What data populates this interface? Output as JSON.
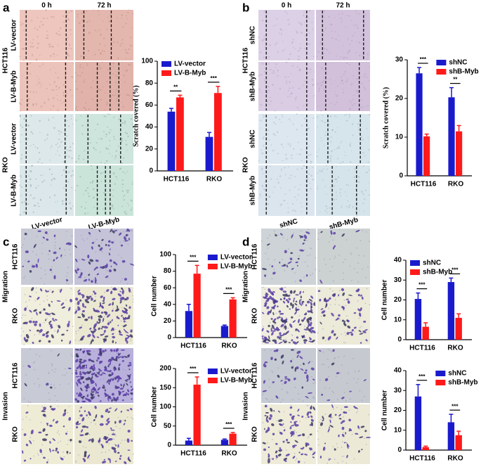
{
  "chart_data": [
    {
      "type": "bar",
      "ylabel": "Scratch covered (%)",
      "categories": [
        "HCT116",
        "RKO"
      ],
      "series": [
        {
          "name": "LV-vector",
          "color": "#1a1acd",
          "values": [
            54,
            31
          ],
          "errors": [
            3,
            4
          ]
        },
        {
          "name": "LV-B-Myb",
          "color": "#ff1a1a",
          "values": [
            67,
            71
          ],
          "errors": [
            2,
            6
          ]
        }
      ],
      "ylim": [
        0,
        100
      ],
      "yticks": [
        0,
        20,
        40,
        60,
        80,
        100
      ],
      "legend": "upper left",
      "annotations": [
        "**",
        "***"
      ]
    },
    {
      "type": "bar",
      "ylabel": "Scratch covered (%)",
      "categories": [
        "HCT116",
        "RKO"
      ],
      "series": [
        {
          "name": "shNC",
          "color": "#1a1acd",
          "values": [
            26.5,
            20.3
          ],
          "errors": [
            1.5,
            2.5
          ]
        },
        {
          "name": "shB-Myb",
          "color": "#ff1a1a",
          "values": [
            10.2,
            11.5
          ],
          "errors": [
            0.6,
            1.5
          ]
        }
      ],
      "ylim": [
        0,
        30
      ],
      "yticks": [
        0,
        10,
        20,
        30
      ],
      "legend": "upper right",
      "annotations": [
        "***",
        "**"
      ]
    },
    {
      "type": "bar",
      "ylabel": "Cell number",
      "categories": [
        "HCT116",
        "RKO"
      ],
      "series": [
        {
          "name": "LV-vector",
          "color": "#1a1acd",
          "values": [
            32,
            14
          ],
          "errors": [
            8,
            1
          ]
        },
        {
          "name": "LV-B-Myb",
          "color": "#ff1a1a",
          "values": [
            77,
            46
          ],
          "errors": [
            10,
            2
          ]
        }
      ],
      "ylim": [
        0,
        100
      ],
      "yticks": [
        0,
        20,
        40,
        60,
        80,
        100
      ],
      "legend": "upper right",
      "annotations": [
        "***",
        "***"
      ]
    },
    {
      "type": "bar",
      "ylabel": "Cell number",
      "categories": [
        "HCT116",
        "RKO"
      ],
      "series": [
        {
          "name": "LV-vector",
          "color": "#1a1acd",
          "values": [
            12,
            14
          ],
          "errors": [
            6,
            2
          ]
        },
        {
          "name": "LV-B-Myb",
          "color": "#ff1a1a",
          "values": [
            158,
            30
          ],
          "errors": [
            20,
            3
          ]
        }
      ],
      "ylim": [
        0,
        200
      ],
      "yticks": [
        0,
        50,
        100,
        150,
        200
      ],
      "legend": "upper right",
      "annotations": [
        "***",
        "***"
      ]
    },
    {
      "type": "bar",
      "ylabel": "Cell number",
      "categories": [
        "HCT116",
        "RKO"
      ],
      "series": [
        {
          "name": "shNC",
          "color": "#1a1acd",
          "values": [
            20.5,
            29
          ],
          "errors": [
            3,
            2
          ]
        },
        {
          "name": "shB-Myb",
          "color": "#ff1a1a",
          "values": [
            6.5,
            11
          ],
          "errors": [
            2,
            2
          ]
        }
      ],
      "ylim": [
        0,
        40
      ],
      "yticks": [
        0,
        10,
        20,
        30,
        40
      ],
      "legend": "upper left",
      "annotations": [
        "***",
        "***"
      ]
    },
    {
      "type": "bar",
      "ylabel": "Cell number",
      "categories": [
        "HCT116",
        "RKO"
      ],
      "series": [
        {
          "name": "shNC",
          "color": "#1a1acd",
          "values": [
            27,
            14
          ],
          "errors": [
            6,
            4
          ]
        },
        {
          "name": "shB-Myb",
          "color": "#ff1a1a",
          "values": [
            1.5,
            7.5
          ],
          "errors": [
            0.5,
            2
          ]
        }
      ],
      "ylim": [
        0,
        40
      ],
      "yticks": [
        0,
        10,
        20,
        30,
        40
      ],
      "legend": "upper right",
      "annotations": [
        "***",
        "***"
      ]
    }
  ],
  "figure": {
    "panels": [
      {
        "letter": "a",
        "columns": [
          "0 h",
          "72 h"
        ],
        "rows": [
          "LV-vector",
          "LV-B-Myb",
          "LV-vector",
          "LV-B-Myb"
        ],
        "groups": [
          "HCT116",
          "RKO"
        ]
      },
      {
        "letter": "b",
        "columns": [
          "0 h",
          "72 h"
        ],
        "rows": [
          "shNC",
          "shB-Myb",
          "shNC",
          "shB-Myb"
        ],
        "groups": [
          "HCT116",
          "RKO"
        ]
      },
      {
        "letter": "c",
        "columns": [
          "LV-vector",
          "LV-B-Myb"
        ],
        "rows": [
          "HCT116",
          "RKO",
          "HCT116",
          "RKO"
        ],
        "groups": [
          "Migration",
          "Invasion"
        ]
      },
      {
        "letter": "d",
        "columns": [
          "shNC",
          "shB-Myb"
        ],
        "rows": [
          "HCT116",
          "RKO",
          "HCT116",
          "RKO"
        ],
        "groups": [
          "Migration",
          "Invasion"
        ]
      }
    ]
  }
}
